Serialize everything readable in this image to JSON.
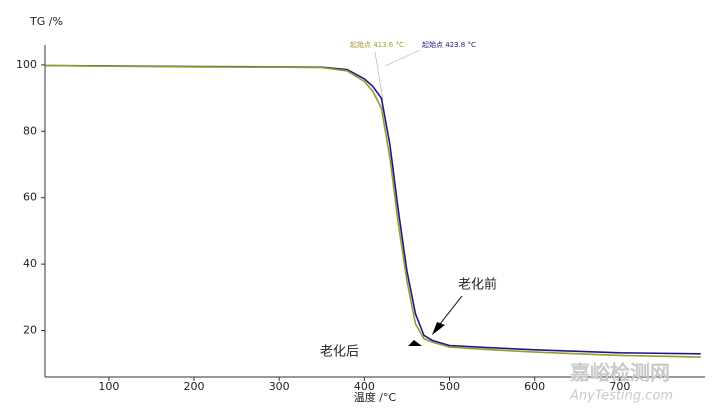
{
  "chart_data": {
    "type": "line",
    "ylabel": "TG /%",
    "xlabel": "温度 /°C",
    "x": [
      25,
      100,
      200,
      300,
      350,
      380,
      400,
      410,
      420,
      430,
      440,
      450,
      460,
      470,
      480,
      500,
      550,
      600,
      700,
      795
    ],
    "series": [
      {
        "name": "老化前",
        "color": "#1a1a8c",
        "values": [
          99.8,
          99.7,
          99.5,
          99.4,
          99.3,
          98.6,
          95.8,
          93.5,
          90,
          76,
          56,
          38,
          25,
          18.5,
          17,
          15.5,
          14.8,
          14.2,
          13.3,
          13
        ]
      },
      {
        "name": "老化后",
        "color": "#9a9a2a",
        "values": [
          99.8,
          99.6,
          99.4,
          99.3,
          99.2,
          98.2,
          95,
          92,
          87,
          72,
          52,
          35,
          22,
          17.5,
          16.5,
          15,
          14.2,
          13.5,
          12.5,
          12
        ]
      }
    ],
    "annotations": [
      "起始点 413.6 °C",
      "起始点 423.8 °C"
    ],
    "xlim": [
      25,
      800
    ],
    "ylim": [
      6,
      106
    ],
    "xticks": [
      100,
      200,
      300,
      400,
      500,
      600,
      700
    ],
    "yticks": [
      20,
      40,
      60,
      80,
      100
    ],
    "watermark": [
      "嘉峪检测网",
      "AnyTesting.com"
    ]
  }
}
